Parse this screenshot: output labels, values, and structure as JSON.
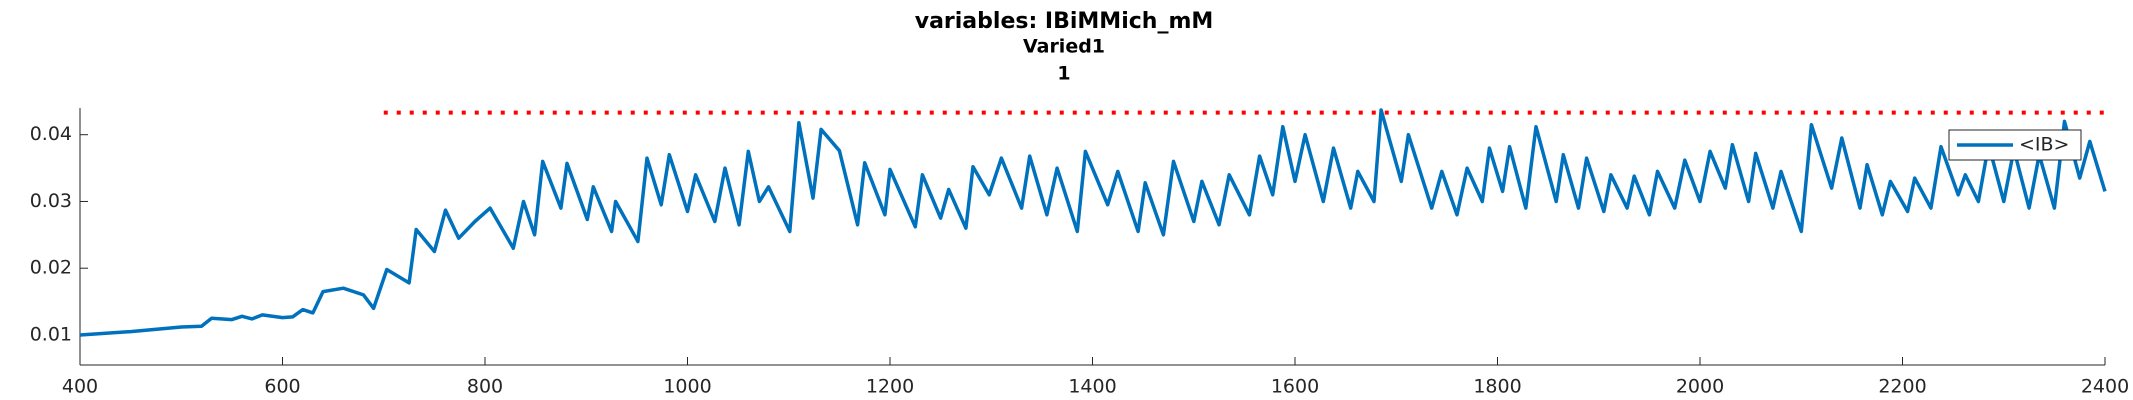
{
  "chart_data": {
    "type": "line",
    "title": "variables: IBiMMich_mM",
    "subtitle": "Varied1",
    "subtitle2": "1",
    "x": [
      400,
      450,
      500,
      520,
      530,
      550,
      560,
      570,
      580,
      600,
      610,
      620,
      630,
      640,
      660,
      680,
      690,
      703,
      725,
      732,
      750,
      761,
      774,
      790,
      805,
      828,
      838,
      849,
      857,
      875,
      881,
      901,
      907,
      925,
      929,
      951,
      960,
      974,
      982,
      1000,
      1008,
      1027,
      1037,
      1051,
      1060,
      1071,
      1080,
      1101,
      1110,
      1124,
      1132,
      1150,
      1168,
      1175,
      1195,
      1200,
      1225,
      1232,
      1250,
      1258,
      1275,
      1282,
      1298,
      1310,
      1330,
      1338,
      1355,
      1365,
      1385,
      1393,
      1415,
      1425,
      1445,
      1452,
      1470,
      1480,
      1500,
      1508,
      1525,
      1535,
      1555,
      1565,
      1578,
      1588,
      1600,
      1610,
      1628,
      1638,
      1655,
      1662,
      1678,
      1685,
      1705,
      1712,
      1735,
      1745,
      1760,
      1770,
      1785,
      1792,
      1805,
      1812,
      1828,
      1838,
      1858,
      1865,
      1880,
      1888,
      1905,
      1912,
      1928,
      1935,
      1950,
      1958,
      1975,
      1985,
      2000,
      2010,
      2025,
      2032,
      2048,
      2055,
      2072,
      2080,
      2100,
      2110,
      2130,
      2140,
      2158,
      2165,
      2180,
      2188,
      2205,
      2212,
      2228,
      2238,
      2255,
      2262,
      2275,
      2285,
      2300,
      2310,
      2325,
      2335,
      2350,
      2360,
      2375,
      2385,
      2400
    ],
    "series": [
      {
        "name": "<IB>",
        "color": "#0072bd",
        "values": [
          0.01,
          0.0105,
          0.0112,
          0.0113,
          0.0125,
          0.0123,
          0.0128,
          0.0124,
          0.013,
          0.0126,
          0.0127,
          0.0138,
          0.0133,
          0.0165,
          0.017,
          0.016,
          0.014,
          0.0198,
          0.0178,
          0.0258,
          0.0225,
          0.0287,
          0.0245,
          0.027,
          0.029,
          0.023,
          0.03,
          0.025,
          0.036,
          0.029,
          0.0357,
          0.0273,
          0.0322,
          0.0255,
          0.03,
          0.024,
          0.0365,
          0.0295,
          0.037,
          0.0285,
          0.034,
          0.027,
          0.035,
          0.0265,
          0.0375,
          0.03,
          0.0322,
          0.0255,
          0.0418,
          0.0305,
          0.0408,
          0.0376,
          0.0265,
          0.0358,
          0.028,
          0.0348,
          0.0262,
          0.034,
          0.0275,
          0.0318,
          0.026,
          0.0352,
          0.031,
          0.0365,
          0.029,
          0.0368,
          0.028,
          0.035,
          0.0255,
          0.0375,
          0.0295,
          0.0345,
          0.0255,
          0.0328,
          0.025,
          0.036,
          0.027,
          0.033,
          0.0265,
          0.034,
          0.028,
          0.0368,
          0.031,
          0.0412,
          0.033,
          0.04,
          0.03,
          0.038,
          0.029,
          0.0345,
          0.03,
          0.0437,
          0.033,
          0.04,
          0.029,
          0.0345,
          0.028,
          0.035,
          0.03,
          0.038,
          0.0315,
          0.0382,
          0.029,
          0.0412,
          0.03,
          0.037,
          0.029,
          0.0365,
          0.0285,
          0.034,
          0.029,
          0.0338,
          0.028,
          0.0345,
          0.029,
          0.0362,
          0.03,
          0.0375,
          0.032,
          0.0385,
          0.03,
          0.0372,
          0.029,
          0.0345,
          0.0255,
          0.0415,
          0.032,
          0.0395,
          0.029,
          0.0355,
          0.028,
          0.033,
          0.0285,
          0.0335,
          0.029,
          0.0382,
          0.031,
          0.034,
          0.03,
          0.0385,
          0.03,
          0.0378,
          0.029,
          0.037,
          0.029,
          0.042,
          0.0335,
          0.039,
          0.0315
        ]
      }
    ],
    "reference_line": {
      "y": 0.0433,
      "x": [
        700,
        2400
      ],
      "color": "#ff0000"
    },
    "xlim": [
      400,
      2400
    ],
    "xticks": [
      400,
      600,
      800,
      1000,
      1200,
      1400,
      1600,
      1800,
      2000,
      2200,
      2400
    ],
    "ylim": [
      0.0055,
      0.044
    ],
    "yticks": [
      0.01,
      0.02,
      0.03,
      0.04
    ],
    "legend": "northeast"
  }
}
